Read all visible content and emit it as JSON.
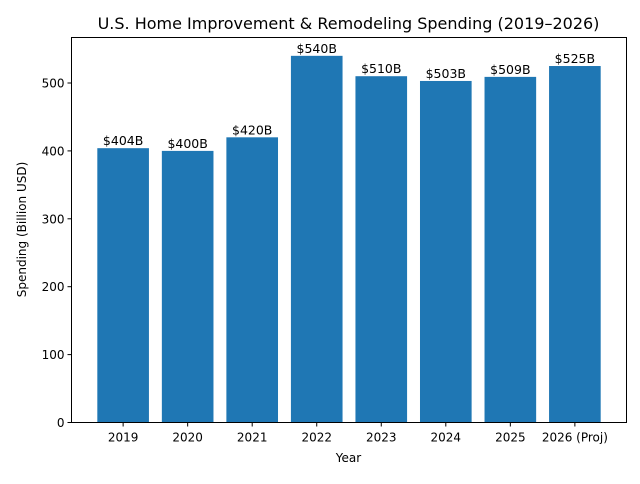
{
  "chart_data": {
    "type": "bar",
    "title": "U.S. Home Improvement & Remodeling Spending (2019–2026)",
    "xlabel": "Year",
    "ylabel": "Spending (Billion USD)",
    "categories": [
      "2019",
      "2020",
      "2021",
      "2022",
      "2023",
      "2024",
      "2025",
      "2026 (Proj)"
    ],
    "values": [
      404,
      400,
      420,
      540,
      510,
      503,
      509,
      525
    ],
    "data_labels": [
      "$404B",
      "$400B",
      "$420B",
      "$540B",
      "$510B",
      "$503B",
      "$509B",
      "$525B"
    ],
    "ylim": [
      0,
      567
    ],
    "yticks": [
      0,
      100,
      200,
      300,
      400,
      500
    ],
    "grid": false,
    "bar_color": "#1f77b4"
  }
}
